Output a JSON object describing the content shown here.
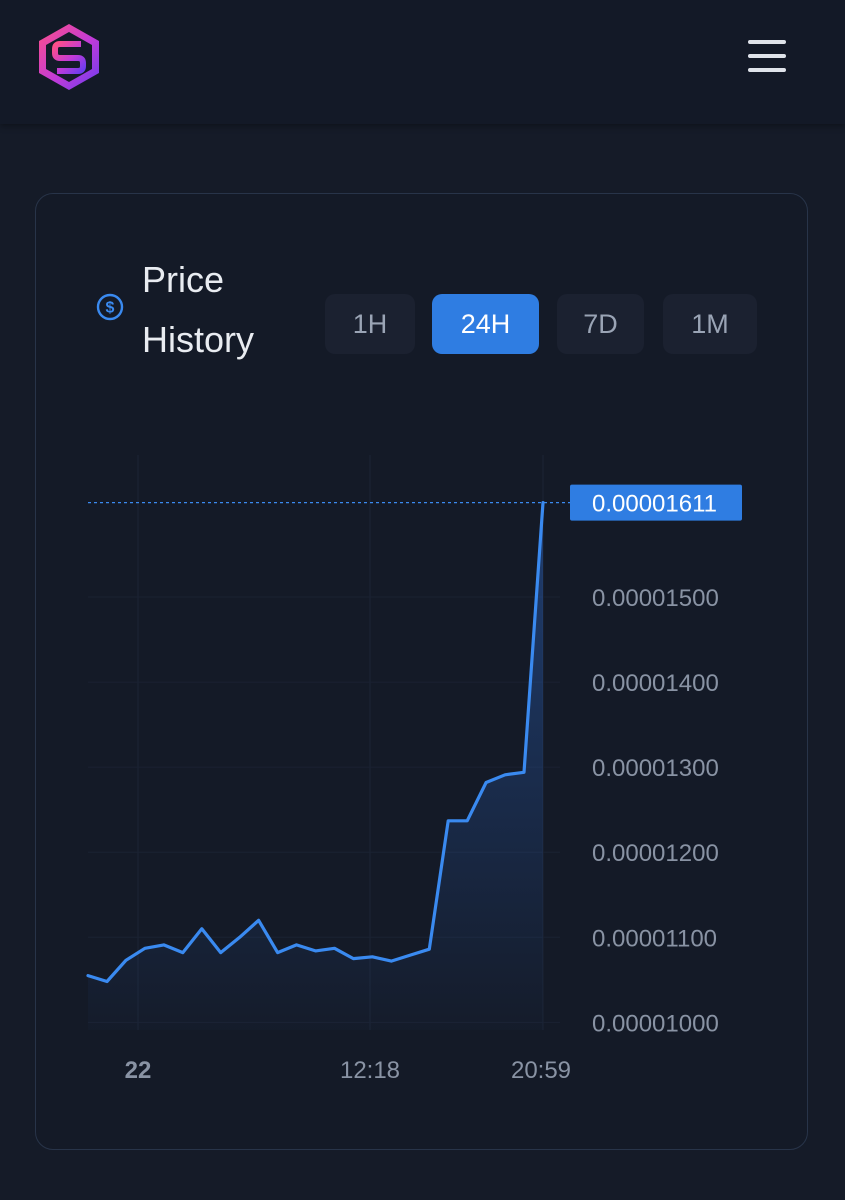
{
  "header": {
    "logo_icon": "hexagon-s-logo-icon",
    "menu_icon": "hamburger-menu-icon"
  },
  "card": {
    "title": "Price History",
    "title_icon": "dollar-circle-icon",
    "timeframes": [
      {
        "label": "1H",
        "active": false
      },
      {
        "label": "24H",
        "active": true
      },
      {
        "label": "7D",
        "active": false
      },
      {
        "label": "1M",
        "active": false
      }
    ]
  },
  "colors": {
    "accent": "#2f7de2",
    "line": "#3a8af0",
    "background": "#151b28"
  },
  "chart_data": {
    "type": "area",
    "xlabel": "",
    "ylabel": "",
    "x_tick_labels": [
      "22",
      "12:18",
      "20:59"
    ],
    "y_tick_labels": [
      "0.00001500",
      "0.00001400",
      "0.00001300",
      "0.00001200",
      "0.00001100",
      "0.00001000"
    ],
    "ylim": [
      9.91e-06,
      1.667e-05
    ],
    "last_value_label": "0.00001611",
    "grid": true,
    "series": [
      {
        "values": [
          1.055e-05,
          1.048e-05,
          1.073e-05,
          1.087e-05,
          1.091e-05,
          1.082e-05,
          1.11e-05,
          1.082e-05,
          1.1e-05,
          1.12e-05,
          1.082e-05,
          1.091e-05,
          1.084e-05,
          1.087e-05,
          1.075e-05,
          1.077e-05,
          1.072e-05,
          1.079e-05,
          1.086e-05,
          1.237e-05,
          1.237e-05,
          1.282e-05,
          1.291e-05,
          1.294e-05,
          1.611e-05
        ]
      }
    ]
  }
}
